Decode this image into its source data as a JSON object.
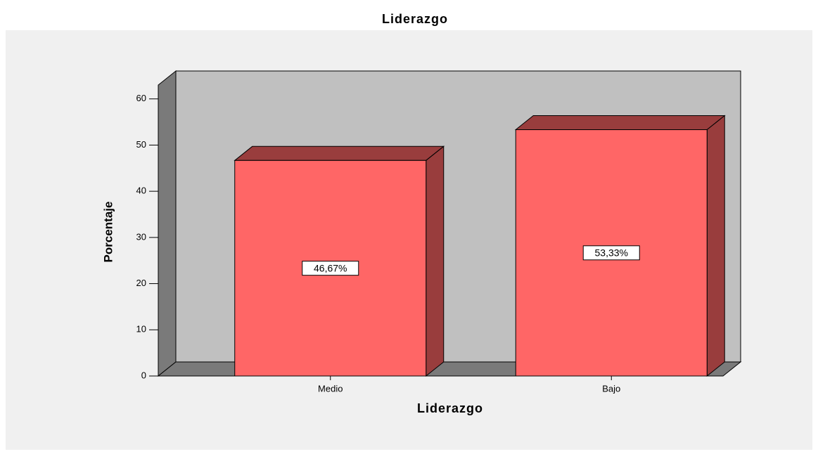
{
  "chart_data": {
    "type": "bar",
    "title": "Liderazgo",
    "x_label": "Liderazgo",
    "y_label": "Porcentaje",
    "categories": [
      "Medio",
      "Bajo"
    ],
    "values": [
      46.67,
      53.33
    ],
    "value_labels": [
      "46,67%",
      "53,33%"
    ],
    "color": "#ff6666",
    "ylim": [
      0,
      63
    ],
    "yticks": [
      0,
      10,
      20,
      30,
      40,
      50,
      60
    ],
    "grid": false
  }
}
